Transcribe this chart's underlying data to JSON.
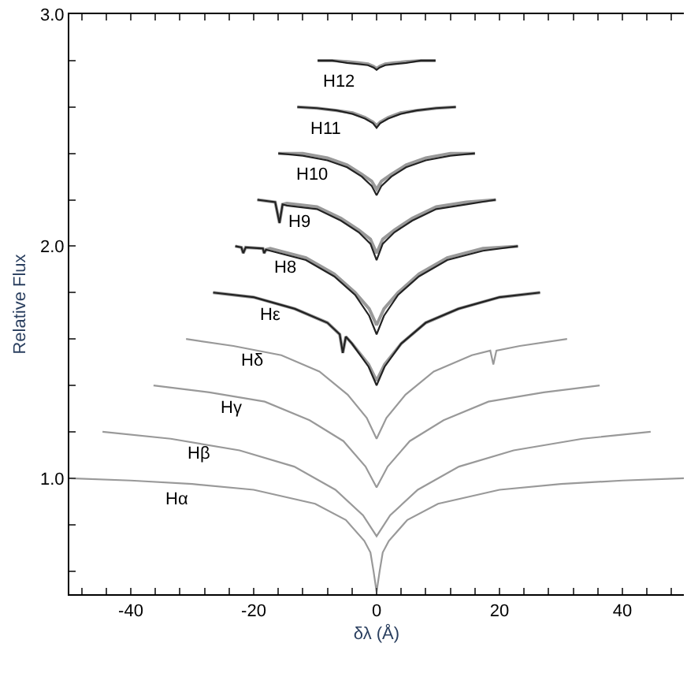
{
  "chart_data": {
    "type": "line",
    "xlabel": "δλ (Å)",
    "ylabel": "Relative Flux",
    "xlim": [
      -50,
      50
    ],
    "ylim": [
      0.5,
      3.0
    ],
    "xticks": [
      {
        "value": -48,
        "label": null
      },
      {
        "value": -44,
        "label": null
      },
      -40,
      {
        "value": -36,
        "label": null
      },
      {
        "value": -32,
        "label": null
      },
      {
        "value": -28,
        "label": null
      },
      {
        "value": -24,
        "label": null
      },
      -20,
      {
        "value": -16,
        "label": null
      },
      {
        "value": -12,
        "label": null
      },
      {
        "value": -8,
        "label": null
      },
      {
        "value": -4,
        "label": null
      },
      0,
      {
        "value": 4,
        "label": null
      },
      {
        "value": 8,
        "label": null
      },
      {
        "value": 12,
        "label": null
      },
      {
        "value": 16,
        "label": null
      },
      20,
      {
        "value": 24,
        "label": null
      },
      {
        "value": 28,
        "label": null
      },
      {
        "value": 32,
        "label": null
      },
      {
        "value": 36,
        "label": null
      },
      40,
      {
        "value": 44,
        "label": null
      },
      {
        "value": 48,
        "label": null
      }
    ],
    "yticks": [
      {
        "value": 0.6,
        "label": null
      },
      {
        "value": 0.8,
        "label": null
      },
      {
        "value": 1.0,
        "label": "1.0"
      },
      {
        "value": 1.2,
        "label": null
      },
      {
        "value": 1.4,
        "label": null
      },
      {
        "value": 1.6,
        "label": null
      },
      {
        "value": 1.8,
        "label": null
      },
      {
        "value": 2.0,
        "label": "2.0"
      },
      {
        "value": 2.2,
        "label": null
      },
      {
        "value": 2.4,
        "label": null
      },
      {
        "value": 2.6,
        "label": null
      },
      {
        "value": 2.8,
        "label": null
      },
      {
        "value": 3.0,
        "label": "3.0"
      }
    ],
    "series": [
      {
        "name": "Hα",
        "color": "#999999",
        "x": [
          -50,
          -40,
          -30,
          -20,
          -10,
          -5,
          -2,
          -1,
          -0.5,
          0,
          0.5,
          1,
          2,
          5,
          10,
          20,
          30,
          40,
          50
        ],
        "values": [
          1.0,
          0.99,
          0.975,
          0.95,
          0.89,
          0.82,
          0.73,
          0.68,
          0.6,
          0.51,
          0.6,
          0.68,
          0.73,
          0.82,
          0.89,
          0.95,
          0.975,
          0.99,
          1.0
        ]
      },
      {
        "name": "Hβ",
        "color": "#999999",
        "x": [
          -44.6,
          -33.5,
          -22.3,
          -13.4,
          -6.7,
          -2.2,
          0,
          2.2,
          6.7,
          13.4,
          22.3,
          33.5,
          44.6
        ],
        "values": [
          1.2,
          1.17,
          1.12,
          1.05,
          0.95,
          0.84,
          0.75,
          0.84,
          0.95,
          1.05,
          1.12,
          1.17,
          1.2
        ]
      },
      {
        "name": "Hγ",
        "color": "#999999",
        "x": [
          -36.3,
          -27.2,
          -18.2,
          -10.9,
          -5.4,
          -1.8,
          0,
          1.8,
          5.4,
          10.9,
          18.2,
          27.2,
          36.3
        ],
        "values": [
          1.4,
          1.37,
          1.33,
          1.25,
          1.16,
          1.05,
          0.96,
          1.05,
          1.16,
          1.25,
          1.33,
          1.37,
          1.4
        ]
      },
      {
        "name": "Hδ",
        "color": "#999999",
        "x": [
          -31,
          -23.3,
          -15.5,
          -9.3,
          -4.7,
          -1.6,
          0,
          1.6,
          4.7,
          9.3,
          15.5,
          18.5,
          19,
          19.5,
          23.3,
          31
        ],
        "values": [
          1.6,
          1.57,
          1.53,
          1.46,
          1.36,
          1.26,
          1.17,
          1.26,
          1.36,
          1.46,
          1.53,
          1.55,
          1.49,
          1.55,
          1.57,
          1.6
        ]
      },
      {
        "name": "Hε",
        "color": "#999999",
        "x": [
          -26.6,
          -20,
          -13.3,
          -8,
          -6,
          -5.5,
          -5,
          -4,
          -1.3,
          0,
          1.3,
          4,
          8,
          13.3,
          20,
          26.6
        ],
        "values": [
          1.8,
          1.78,
          1.73,
          1.67,
          1.62,
          1.54,
          1.61,
          1.58,
          1.49,
          1.42,
          1.49,
          1.58,
          1.67,
          1.73,
          1.78,
          1.8
        ]
      },
      {
        "color": "#222222",
        "x": [
          -26.6,
          -20,
          -13.3,
          -8,
          -6,
          -5.5,
          -5,
          -4,
          -1.3,
          0,
          1.3,
          4,
          8,
          13.3,
          20,
          26.6
        ],
        "values": [
          1.8,
          1.78,
          1.73,
          1.67,
          1.62,
          1.54,
          1.61,
          1.58,
          1.48,
          1.4,
          1.48,
          1.58,
          1.67,
          1.73,
          1.78,
          1.8
        ]
      },
      {
        "name": "H8",
        "color": "#999999",
        "x": [
          -23,
          -22,
          -21.7,
          -21.3,
          -18.5,
          -18.3,
          -18,
          -17.3,
          -11.5,
          -6.9,
          -3.5,
          -1.2,
          0,
          1.2,
          3.5,
          6.9,
          11.5,
          17.3,
          23
        ],
        "values": [
          2.0,
          1.995,
          1.97,
          1.995,
          1.99,
          1.97,
          1.985,
          1.99,
          1.95,
          1.88,
          1.8,
          1.73,
          1.66,
          1.73,
          1.8,
          1.88,
          1.95,
          1.99,
          2.0
        ]
      },
      {
        "color": "#222222",
        "x": [
          -23,
          -22,
          -21.7,
          -21.3,
          -18.5,
          -18.3,
          -18,
          -17.3,
          -11.5,
          -6.9,
          -3.5,
          -1.2,
          0,
          1.2,
          3.5,
          6.9,
          11.5,
          17.3,
          23
        ],
        "values": [
          2.0,
          1.995,
          1.97,
          1.995,
          1.99,
          1.97,
          1.985,
          1.98,
          1.94,
          1.87,
          1.79,
          1.7,
          1.62,
          1.7,
          1.79,
          1.87,
          1.94,
          1.98,
          2.0
        ]
      },
      {
        "name": "H9",
        "color": "#999999",
        "x": [
          -19.4,
          -16.5,
          -15.8,
          -15.3,
          -14.6,
          -9.7,
          -5.8,
          -2.9,
          -1,
          0,
          1,
          2.9,
          5.8,
          9.7,
          14.6,
          19.4
        ],
        "values": [
          2.2,
          2.19,
          2.1,
          2.18,
          2.185,
          2.17,
          2.12,
          2.07,
          2.03,
          1.97,
          2.03,
          2.07,
          2.12,
          2.17,
          2.19,
          2.2
        ]
      },
      {
        "color": "#222222",
        "x": [
          -19.4,
          -16.5,
          -15.8,
          -15.3,
          -14.6,
          -9.7,
          -5.8,
          -2.9,
          -1,
          0,
          1,
          2.9,
          5.8,
          9.7,
          14.6,
          19.4
        ],
        "values": [
          2.2,
          2.19,
          2.1,
          2.18,
          2.175,
          2.16,
          2.11,
          2.06,
          2.01,
          1.94,
          2.01,
          2.06,
          2.11,
          2.16,
          2.18,
          2.2
        ]
      },
      {
        "name": "H10",
        "color": "#999999",
        "x": [
          -16,
          -12,
          -8,
          -4.8,
          -2.4,
          -0.8,
          0,
          0.8,
          2.4,
          4.8,
          8,
          12,
          16
        ],
        "values": [
          2.4,
          2.4,
          2.38,
          2.35,
          2.31,
          2.28,
          2.245,
          2.28,
          2.31,
          2.35,
          2.38,
          2.4,
          2.4
        ]
      },
      {
        "color": "#222222",
        "x": [
          -16,
          -12,
          -8,
          -4.8,
          -2.4,
          -0.8,
          0,
          0.8,
          2.4,
          4.8,
          8,
          12,
          16
        ],
        "values": [
          2.4,
          2.39,
          2.37,
          2.34,
          2.3,
          2.26,
          2.22,
          2.26,
          2.3,
          2.34,
          2.37,
          2.39,
          2.4
        ]
      },
      {
        "name": "H11",
        "color": "#999999",
        "x": [
          -12.9,
          -9.7,
          -6.5,
          -3.9,
          -1.9,
          -0.6,
          0,
          0.6,
          1.9,
          3.9,
          6.5,
          9.7,
          12.9
        ],
        "values": [
          2.6,
          2.595,
          2.585,
          2.575,
          2.555,
          2.535,
          2.52,
          2.535,
          2.555,
          2.575,
          2.585,
          2.595,
          2.6
        ]
      },
      {
        "color": "#222222",
        "x": [
          -12.9,
          -9.7,
          -6.5,
          -3.9,
          -1.9,
          -0.6,
          0,
          0.6,
          1.9,
          3.9,
          6.5,
          9.7,
          12.9
        ],
        "values": [
          2.6,
          2.595,
          2.585,
          2.57,
          2.55,
          2.53,
          2.51,
          2.53,
          2.55,
          2.57,
          2.585,
          2.595,
          2.6
        ]
      },
      {
        "name": "H12",
        "color": "#999999",
        "x": [
          -9.6,
          -7.2,
          -4.8,
          -2.9,
          -1.4,
          -0.5,
          0,
          0.5,
          1.4,
          2.9,
          4.8,
          7.2,
          9.6
        ],
        "values": [
          2.8,
          2.8,
          2.795,
          2.79,
          2.785,
          2.775,
          2.765,
          2.775,
          2.785,
          2.79,
          2.795,
          2.8,
          2.8
        ]
      },
      {
        "color": "#222222",
        "x": [
          -9.6,
          -7.2,
          -4.8,
          -2.9,
          -1.4,
          -0.5,
          0,
          0.5,
          1.4,
          2.9,
          4.8,
          7.2,
          9.6
        ],
        "values": [
          2.8,
          2.8,
          2.79,
          2.785,
          2.78,
          2.77,
          2.76,
          2.77,
          2.78,
          2.785,
          2.79,
          2.8,
          2.8
        ]
      }
    ]
  }
}
